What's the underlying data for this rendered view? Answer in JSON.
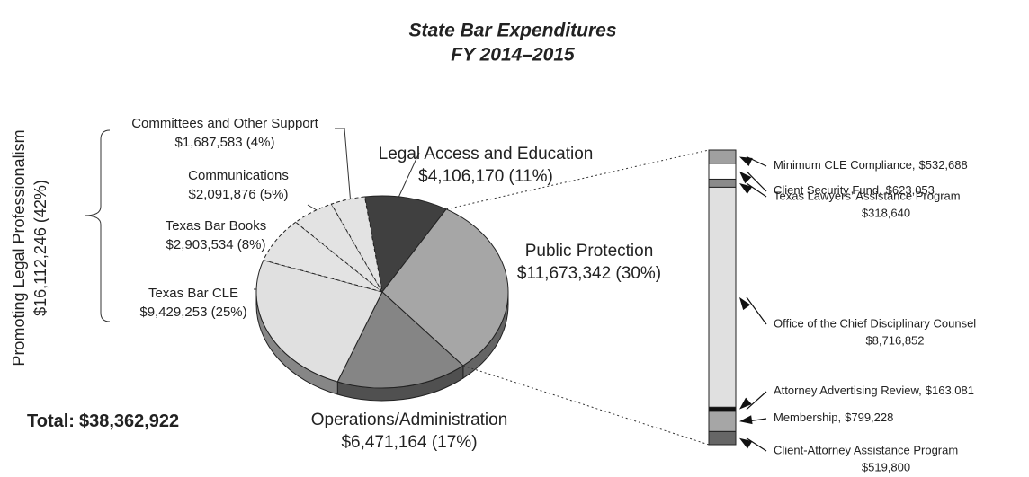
{
  "chart_data": {
    "type": "pie",
    "title": "State Bar Expenditures",
    "subtitle": "FY 2014–2015",
    "categories": [
      "Legal Access and Education",
      "Public Protection",
      "Operations/Administration",
      "Texas Bar CLE",
      "Texas Bar Books",
      "Communications",
      "Committees and Other Support"
    ],
    "values": [
      4106170,
      11673342,
      6471164,
      9429253,
      2903534,
      2091876,
      1687583
    ],
    "value_labels": [
      "$4,106,170 (11%)",
      "$11,673,342 (30%)",
      "$6,471,164 (17%)",
      "$9,429,253 (25%)",
      "$2,903,534 (8%)",
      "$2,091,876 (5%)",
      "$1,687,583 (4%)"
    ],
    "colors": [
      "#404040",
      "#a6a6a6",
      "#858585",
      "#e0e0e0",
      "#e3e3e3",
      "#e3e3e3",
      "#e3e3e3"
    ],
    "group": {
      "label": "Promoting Legal Professionalism",
      "value": 16112246,
      "value_label": "$16,112,246 (42%)"
    },
    "total": {
      "label": "Total:",
      "value": 38362922,
      "value_label": "$38,362,922"
    },
    "breakdown": {
      "type": "bar",
      "categories": [
        "Minimum CLE Compliance,",
        "Client Security Fund,",
        "Texas Lawyers’ Assistance Program",
        "Office of the Chief Disciplinary Counsel",
        "Attorney Advertising Review,",
        "Membership,",
        "Client-Attorney Assistance Program"
      ],
      "values": [
        532688,
        623053,
        318640,
        8716852,
        163081,
        799228,
        519800
      ],
      "value_labels": [
        "$532,688",
        "$623,053",
        "$318,640",
        "$8,716,852",
        "$163,081",
        "$799,228",
        "$519,800"
      ],
      "colors": [
        "#a0a0a0",
        "#ffffff",
        "#8a8a8a",
        "#e0e0e0",
        "#111111",
        "#a6a6a6",
        "#666666"
      ]
    }
  }
}
